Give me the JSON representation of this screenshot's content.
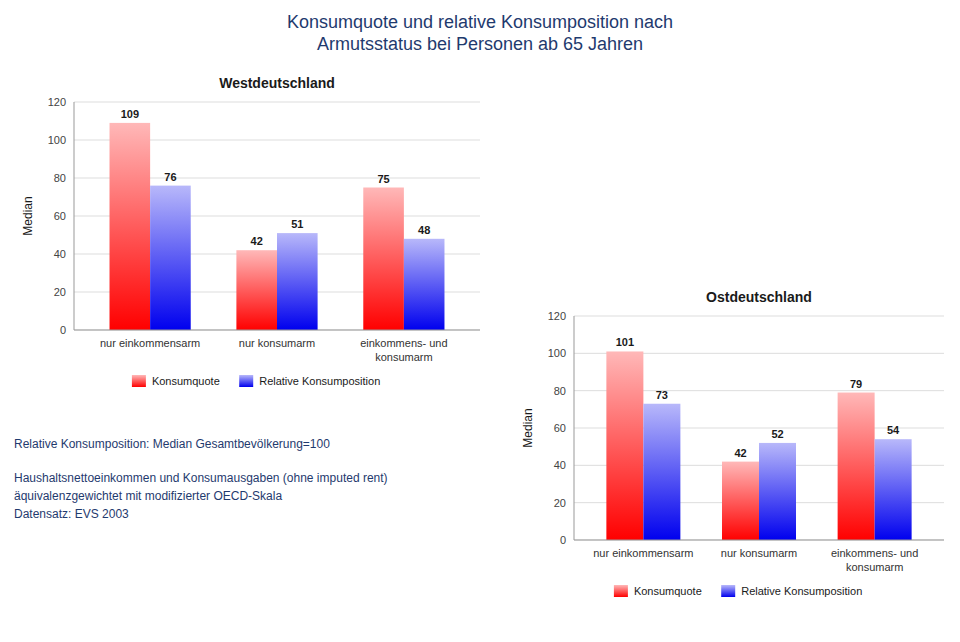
{
  "title": "Konsumquote und relative Konsumposition nach\nArmutsstatus bei Personen ab 65 Jahren",
  "annotations": [
    "Relative Konsumposition: Median Gesamtbevölkerung=100",
    "Haushaltsnettoeinkommen und Konsumausgaben (ohne imputed rent)\näquivalenzgewichtet mit modifizierter OECD-Skala\nDatensatz: EVS 2003"
  ],
  "chart_data": [
    {
      "type": "bar",
      "title": "Westdeutschland",
      "categories": [
        "nur einkommensarm",
        "nur konsumarm",
        "einkommens- und\nkonsumarm"
      ],
      "series": [
        {
          "name": "Konsumquote",
          "color": "#ff0000",
          "values": [
            109,
            42,
            75
          ]
        },
        {
          "name": "Relative Konsumposition",
          "color": "#0000ee",
          "values": [
            76,
            51,
            48
          ]
        }
      ],
      "ylabel": "Median",
      "ylim": [
        0,
        120
      ],
      "yticks": [
        0,
        20,
        40,
        60,
        80,
        100,
        120
      ],
      "grid": true,
      "legend": "bottom",
      "data_labels": true
    },
    {
      "type": "bar",
      "title": "Ostdeutschland",
      "categories": [
        "nur einkommensarm",
        "nur konsumarm",
        "einkommens- und\nkonsumarm"
      ],
      "series": [
        {
          "name": "Konsumquote",
          "color": "#ff0000",
          "values": [
            101,
            42,
            79
          ]
        },
        {
          "name": "Relative Konsumposition",
          "color": "#0000ee",
          "values": [
            73,
            52,
            54
          ]
        }
      ],
      "ylabel": "Median",
      "ylim": [
        0,
        120
      ],
      "yticks": [
        0,
        20,
        40,
        60,
        80,
        100,
        120
      ],
      "grid": true,
      "legend": "bottom",
      "data_labels": true
    }
  ]
}
